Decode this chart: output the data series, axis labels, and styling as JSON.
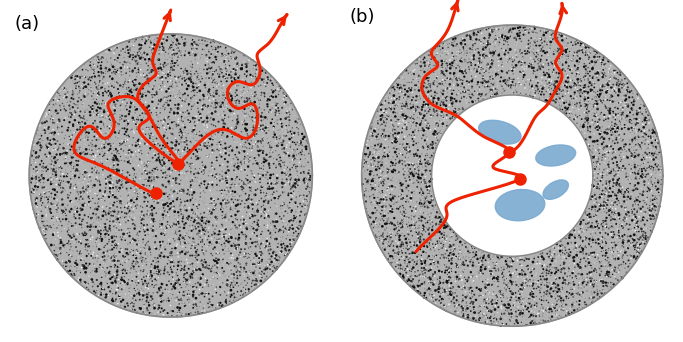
{
  "fig_width": 6.83,
  "fig_height": 3.42,
  "dpi": 100,
  "label_a": "(a)",
  "label_b": "(b)",
  "label_fontsize": 13,
  "bg_color": "#ffffff",
  "red_color": "#ee2200",
  "blue_color": "#7aaad0",
  "white_color": "#ffffff",
  "granite_base": "#b0b0b0",
  "granite_n_dots": 8000
}
